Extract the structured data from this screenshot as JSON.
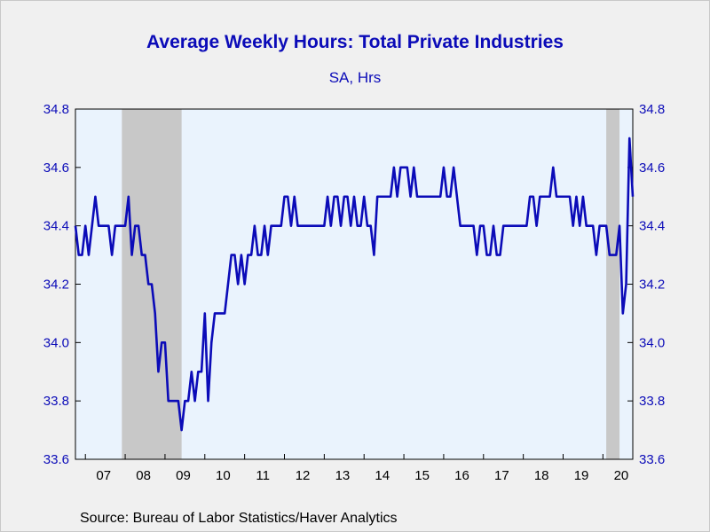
{
  "chart_data": {
    "type": "line",
    "title": "Average Weekly Hours: Total Private Industries",
    "subtitle": "SA, Hrs",
    "source": "Source:  Bureau of Labor Statistics/Haver Analytics",
    "ylim": [
      33.6,
      34.8
    ],
    "y_ticks": [
      "33.6",
      "33.8",
      "34.0",
      "34.2",
      "34.4",
      "34.6",
      "34.8"
    ],
    "x_year_labels": [
      "07",
      "08",
      "09",
      "10",
      "11",
      "12",
      "13",
      "14",
      "15",
      "16",
      "17",
      "18",
      "19",
      "20"
    ],
    "x_start": "2006-10",
    "grid": false,
    "dual_y_axis": true,
    "recession_shading": [
      {
        "start": "2007-12",
        "end": "2009-06"
      },
      {
        "start": "2020-02",
        "end": "2020-06"
      }
    ],
    "colors": {
      "line": "#0b0bb8",
      "text": "#0b0bb8",
      "plot_bg": "#eaf3fd",
      "recession": "#c8c8c8",
      "page_bg": "#f0f0f0"
    },
    "series": [
      {
        "values": [
          34.4,
          34.3,
          34.3,
          34.4,
          34.3,
          34.4,
          34.5,
          34.4,
          34.4,
          34.4,
          34.4,
          34.3,
          34.4,
          34.4,
          34.4,
          34.4,
          34.5,
          34.3,
          34.4,
          34.4,
          34.3,
          34.3,
          34.2,
          34.2,
          34.1,
          33.9,
          34.0,
          34.0,
          33.8,
          33.8,
          33.8,
          33.8,
          33.7,
          33.8,
          33.8,
          33.9,
          33.8,
          33.9,
          33.9,
          34.1,
          33.8,
          34.0,
          34.1,
          34.1,
          34.1,
          34.1,
          34.2,
          34.3,
          34.3,
          34.2,
          34.3,
          34.2,
          34.3,
          34.3,
          34.4,
          34.3,
          34.3,
          34.4,
          34.3,
          34.4,
          34.4,
          34.4,
          34.4,
          34.5,
          34.5,
          34.4,
          34.5,
          34.4,
          34.4,
          34.4,
          34.4,
          34.4,
          34.4,
          34.4,
          34.4,
          34.4,
          34.5,
          34.4,
          34.5,
          34.5,
          34.4,
          34.5,
          34.5,
          34.4,
          34.5,
          34.4,
          34.4,
          34.5,
          34.4,
          34.4,
          34.3,
          34.5,
          34.5,
          34.5,
          34.5,
          34.5,
          34.6,
          34.5,
          34.6,
          34.6,
          34.6,
          34.5,
          34.6,
          34.5,
          34.5,
          34.5,
          34.5,
          34.5,
          34.5,
          34.5,
          34.5,
          34.6,
          34.5,
          34.5,
          34.6,
          34.5,
          34.4,
          34.4,
          34.4,
          34.4,
          34.4,
          34.3,
          34.4,
          34.4,
          34.3,
          34.3,
          34.4,
          34.3,
          34.3,
          34.4,
          34.4,
          34.4,
          34.4,
          34.4,
          34.4,
          34.4,
          34.4,
          34.5,
          34.5,
          34.4,
          34.5,
          34.5,
          34.5,
          34.5,
          34.6,
          34.5,
          34.5,
          34.5,
          34.5,
          34.5,
          34.4,
          34.5,
          34.4,
          34.5,
          34.4,
          34.4,
          34.4,
          34.3,
          34.4,
          34.4,
          34.4,
          34.3,
          34.3,
          34.3,
          34.4,
          34.1,
          34.2,
          34.7,
          34.5
        ]
      }
    ]
  }
}
